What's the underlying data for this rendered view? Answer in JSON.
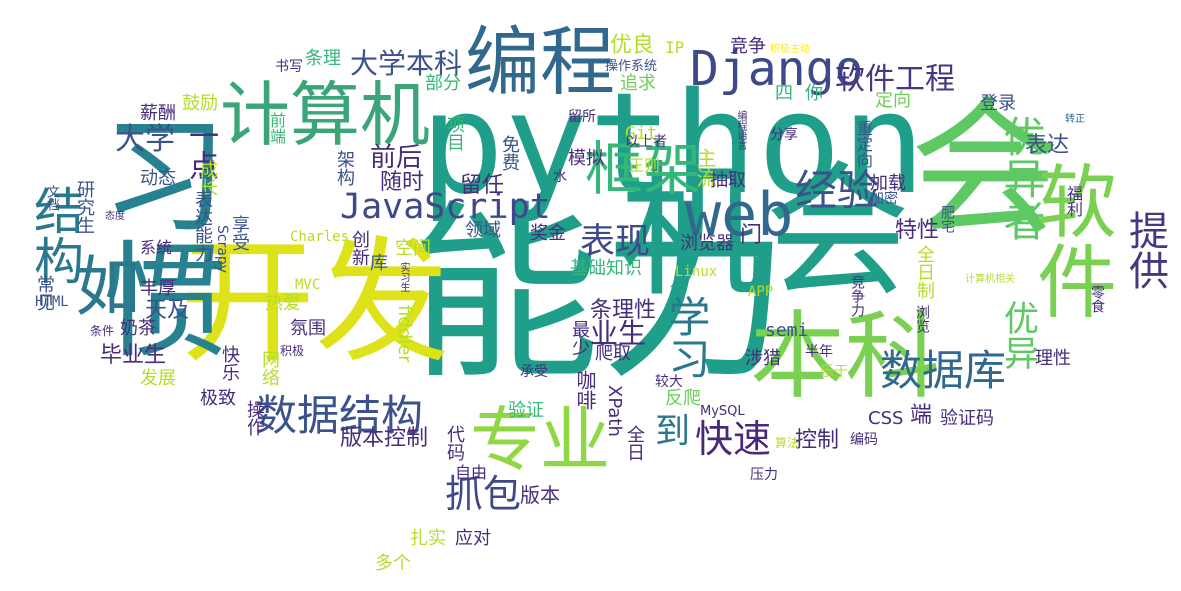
{
  "colors": {
    "dark_purple": "#440154",
    "indigo": "#482878",
    "blue": "#3e4989",
    "slate": "#31688e",
    "teal": "#26828e",
    "green_teal": "#1f9e89",
    "green": "#35b779",
    "lime": "#6ece58",
    "yellow_green": "#b5de2b",
    "yellow": "#fde725",
    "bg": "#ffffff"
  },
  "words": [
    {
      "text": "python",
      "color": "#1f9e89"
    },
    {
      "text": "能力",
      "color": "#1f9e89"
    },
    {
      "text": "机会",
      "color": "#1f9e89"
    },
    {
      "text": "开发",
      "color": "#dde318"
    },
    {
      "text": "习惯",
      "color": "#26828e"
    },
    {
      "text": "会",
      "color": "#5ec962"
    },
    {
      "text": "编程",
      "color": "#31688e"
    },
    {
      "text": "计算机",
      "color": "#3aa677"
    },
    {
      "text": "本科",
      "color": "#7ad151"
    },
    {
      "text": "软件",
      "color": "#7ad151"
    },
    {
      "text": "专业",
      "color": "#8fd744"
    },
    {
      "text": "如",
      "color": "#2a788e"
    },
    {
      "text": "结构",
      "color": "#2a788e"
    },
    {
      "text": "web",
      "color": "#31688e"
    },
    {
      "text": "框架",
      "color": "#35b779"
    },
    {
      "text": "Django",
      "color": "#3e4989"
    },
    {
      "text": "JavaScript",
      "color": "#3e4989"
    },
    {
      "text": "经验",
      "color": "#3b528b"
    },
    {
      "text": "优异者",
      "color": "#5ec962"
    },
    {
      "text": "提供",
      "color": "#453781"
    },
    {
      "text": "数据库",
      "color": "#31688e"
    },
    {
      "text": "数据结构",
      "color": "#3b528b"
    },
    {
      "text": "学习",
      "color": "#2a788e"
    },
    {
      "text": "抓包",
      "color": "#3e4989"
    },
    {
      "text": "快速",
      "color": "#482878"
    },
    {
      "text": "到",
      "color": "#2a788e"
    },
    {
      "text": "表现",
      "color": "#3e4989"
    },
    {
      "text": "优异",
      "color": "#5ec962"
    },
    {
      "text": "大学本科",
      "color": "#3b528b"
    },
    {
      "text": "软件工程",
      "color": "#453781"
    },
    {
      "text": "优良",
      "color": "#b5de2b"
    },
    {
      "text": "IP",
      "color": "#b5de2b"
    },
    {
      "text": "竞争",
      "color": "#472d7b"
    },
    {
      "text": "积极主动",
      "color": "#fde725"
    },
    {
      "text": "书写",
      "color": "#472d7b"
    },
    {
      "text": "条理",
      "color": "#35b779"
    },
    {
      "text": "部分",
      "color": "#35b779"
    },
    {
      "text": "操作系统",
      "color": "#3b528b"
    },
    {
      "text": "追求",
      "color": "#6ece58"
    },
    {
      "text": "四",
      "color": "#35b779"
    },
    {
      "text": "你",
      "color": "#35b779"
    },
    {
      "text": "定向",
      "color": "#6ece58"
    },
    {
      "text": "登录",
      "color": "#3b528b"
    },
    {
      "text": "转正",
      "color": "#31688e"
    },
    {
      "text": "鼓励",
      "color": "#b5de2b"
    },
    {
      "text": "薪酬",
      "color": "#472d7b"
    },
    {
      "text": "大学",
      "color": "#3b528b"
    },
    {
      "text": "一点",
      "color": "#472d7b"
    },
    {
      "text": "前端",
      "color": "#35b779"
    },
    {
      "text": "项目",
      "color": "#35b779"
    },
    {
      "text": "Git",
      "color": "#b5de2b"
    },
    {
      "text": "留所",
      "color": "#472d7b"
    },
    {
      "text": "以上者",
      "color": "#472d7b"
    },
    {
      "text": "分享",
      "color": "#472d7b"
    },
    {
      "text": "编程语言",
      "color": "#472d7b"
    },
    {
      "text": "重定向",
      "color": "#3b528b"
    },
    {
      "text": "表达",
      "color": "#3b528b"
    },
    {
      "text": "前后",
      "color": "#472d7b"
    },
    {
      "text": "架构",
      "color": "#3b528b"
    },
    {
      "text": "免费",
      "color": "#3b528b"
    },
    {
      "text": "正则",
      "color": "#b5de2b"
    },
    {
      "text": "主流",
      "color": "#b5de2b"
    },
    {
      "text": "成长",
      "color": "#b5de2b"
    },
    {
      "text": "动态",
      "color": "#3b528b"
    },
    {
      "text": "文档",
      "color": "#3b528b"
    },
    {
      "text": "研究生",
      "color": "#3b528b"
    },
    {
      "text": "随时",
      "color": "#472d7b"
    },
    {
      "text": "模拟",
      "color": "#472d7b"
    },
    {
      "text": "抽取",
      "color": "#472d7b"
    },
    {
      "text": "水",
      "color": "#472d7b"
    },
    {
      "text": "加载",
      "color": "#472d7b"
    },
    {
      "text": "加密",
      "color": "#3b528b"
    },
    {
      "text": "福利",
      "color": "#472d7b"
    },
    {
      "text": "表达能力",
      "color": "#3b528b"
    },
    {
      "text": "留任",
      "color": "#472d7b"
    },
    {
      "text": "肥宅",
      "color": "#3b528b"
    },
    {
      "text": "态度",
      "color": "#472d7b"
    },
    {
      "text": "享受",
      "color": "#3b528b"
    },
    {
      "text": "Charles",
      "color": "#b5de2b"
    },
    {
      "text": "创新",
      "color": "#472d7b"
    },
    {
      "text": "领域",
      "color": "#3b528b"
    },
    {
      "text": "奖金",
      "color": "#472d7b"
    },
    {
      "text": "浏览器",
      "color": "#472d7b"
    },
    {
      "text": "门",
      "color": "#472d7b"
    },
    {
      "text": "特性",
      "color": "#472d7b"
    },
    {
      "text": "系统",
      "color": "#472d7b"
    },
    {
      "text": "Scrapy",
      "color": "#3b528b"
    },
    {
      "text": "空间",
      "color": "#b5de2b"
    },
    {
      "text": "库",
      "color": "#3b528b"
    },
    {
      "text": "基础知识",
      "color": "#35b779"
    },
    {
      "text": "Linux",
      "color": "#b5de2b"
    },
    {
      "text": "全日制",
      "color": "#b5de2b"
    },
    {
      "text": "常见",
      "color": "#3b528b"
    },
    {
      "text": "丰厚",
      "color": "#472d7b"
    },
    {
      "text": "天及",
      "color": "#3b528b"
    },
    {
      "text": "热爱",
      "color": "#b5de2b"
    },
    {
      "text": "MVC",
      "color": "#b5de2b"
    },
    {
      "text": "实习生",
      "color": "#472d7b"
    },
    {
      "text": "APP",
      "color": "#b5de2b"
    },
    {
      "text": "竞争力",
      "color": "#472d7b"
    },
    {
      "text": "计算机相关",
      "color": "#b5de2b"
    },
    {
      "text": "零食",
      "color": "#472d7b"
    },
    {
      "text": "HTML",
      "color": "#3b528b"
    },
    {
      "text": "奶茶",
      "color": "#472d7b"
    },
    {
      "text": "条件",
      "color": "#472d7b"
    },
    {
      "text": "氛围",
      "color": "#472d7b"
    },
    {
      "text": "条理性",
      "color": "#472d7b"
    },
    {
      "text": "fiddler",
      "color": "#b5de2b"
    },
    {
      "text": "semi",
      "color": "#3b528b"
    },
    {
      "text": "浏览",
      "color": "#472d7b"
    },
    {
      "text": "业生",
      "color": "#472d7b"
    },
    {
      "text": "积极",
      "color": "#472d7b"
    },
    {
      "text": "毕业生",
      "color": "#472d7b"
    },
    {
      "text": "快乐",
      "color": "#472d7b"
    },
    {
      "text": "网络",
      "color": "#b5de2b"
    },
    {
      "text": "最少",
      "color": "#472d7b"
    },
    {
      "text": "爬取",
      "color": "#472d7b"
    },
    {
      "text": "涉猎",
      "color": "#472d7b"
    },
    {
      "text": "半年",
      "color": "#472d7b"
    },
    {
      "text": "理性",
      "color": "#472d7b"
    },
    {
      "text": "发展",
      "color": "#b5de2b"
    },
    {
      "text": "乐于",
      "color": "#b5de2b"
    },
    {
      "text": "较大",
      "color": "#472d7b"
    },
    {
      "text": "承受",
      "color": "#472d7b"
    },
    {
      "text": "咖啡",
      "color": "#472d7b"
    },
    {
      "text": "极致",
      "color": "#472d7b"
    },
    {
      "text": "验证",
      "color": "#35b779"
    },
    {
      "text": "反爬",
      "color": "#6ece58"
    },
    {
      "text": "操作",
      "color": "#472d7b"
    },
    {
      "text": "XPath",
      "color": "#472d7b"
    },
    {
      "text": "MySQL",
      "color": "#472d7b"
    },
    {
      "text": "端",
      "color": "#472d7b"
    },
    {
      "text": "验证码",
      "color": "#472d7b"
    },
    {
      "text": "CSS",
      "color": "#472d7b"
    },
    {
      "text": "版本控制",
      "color": "#472d7b"
    },
    {
      "text": "代码",
      "color": "#472d7b"
    },
    {
      "text": "全日",
      "color": "#472d7b"
    },
    {
      "text": "控制",
      "color": "#472d7b"
    },
    {
      "text": "算法",
      "color": "#b5de2b"
    },
    {
      "text": "编码",
      "color": "#472d7b"
    },
    {
      "text": "自由",
      "color": "#472d7b"
    },
    {
      "text": "版本",
      "color": "#472d7b"
    },
    {
      "text": "压力",
      "color": "#472d7b"
    },
    {
      "text": "扎实",
      "color": "#b5de2b"
    },
    {
      "text": "应对",
      "color": "#472d7b"
    },
    {
      "text": "多个",
      "color": "#b5de2b"
    }
  ]
}
